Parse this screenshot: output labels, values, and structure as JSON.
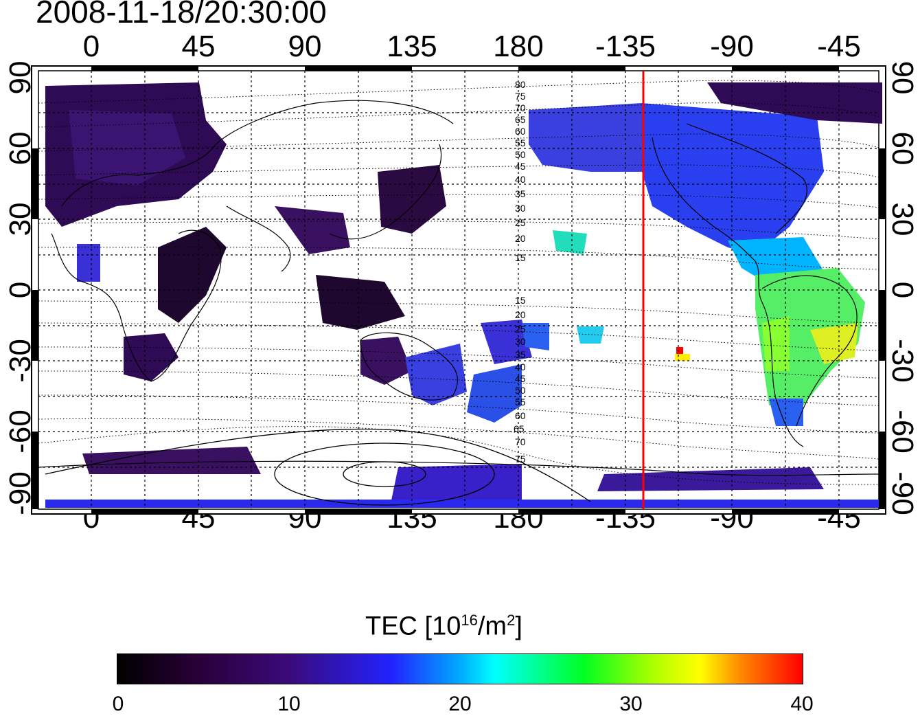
{
  "title": "2008-11-18/20:30:00",
  "top_lon_ticks": [
    "0",
    "45",
    "90",
    "135",
    "180",
    "-135",
    "-90",
    "-45"
  ],
  "bottom_lon_ticks": [
    "0",
    "45",
    "90",
    "135",
    "180",
    "-135",
    "-90",
    "-45"
  ],
  "lat_ticks": [
    "90",
    "60",
    "30",
    "0",
    "-30",
    "-60",
    "-90"
  ],
  "contour_labels": [
    "80",
    "75",
    "70",
    "65",
    "60",
    "55",
    "50",
    "45",
    "40",
    "35",
    "30",
    "25",
    "20",
    "15",
    "15",
    "20",
    "25",
    "30",
    "35",
    "40",
    "45",
    "50",
    "55",
    "60",
    "65",
    "70",
    "75"
  ],
  "colorbar": {
    "label_main": "TEC  [10",
    "label_exp1": "16",
    "label_mid": "/m",
    "label_exp2": "2",
    "label_end": "]",
    "ticks": [
      "0",
      "10",
      "20",
      "30",
      "40"
    ],
    "min": 0,
    "max": 40
  },
  "marker_line": {
    "longitude": -128,
    "color": "#ff0000"
  },
  "colors": {
    "low": "#2a0038",
    "mid": "#3a0a7a",
    "high": "#ff0000"
  }
}
